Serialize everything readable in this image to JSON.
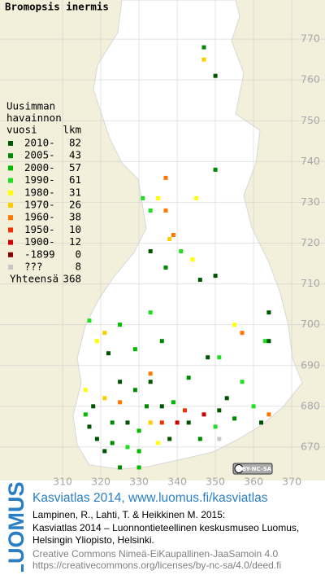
{
  "title": "Bromopsis inermis",
  "legend": {
    "heading": [
      "Uusimman",
      "havainnon",
      "vuosi"
    ],
    "count_heading": "lkm",
    "rows": [
      {
        "label": "2010-",
        "count": 82,
        "color": "#005500"
      },
      {
        "label": "2005-",
        "count": 43,
        "color": "#008800"
      },
      {
        "label": "2000-",
        "count": 57,
        "color": "#00bb00"
      },
      {
        "label": "1990-",
        "count": 61,
        "color": "#22dd22"
      },
      {
        "label": "1980-",
        "count": 31,
        "color": "#ffff00"
      },
      {
        "label": "1970-",
        "count": 26,
        "color": "#ffcc00"
      },
      {
        "label": "1960-",
        "count": 38,
        "color": "#ff7700"
      },
      {
        "label": "1950-",
        "count": 10,
        "color": "#ee3300"
      },
      {
        "label": "1900-",
        "count": 12,
        "color": "#cc0000"
      },
      {
        "label": "-1899",
        "count": 0,
        "color": "#880000"
      },
      {
        "label": "???",
        "count": 8,
        "color": "#c8c8c8"
      }
    ],
    "total_label": "Yhteensä",
    "total": 368
  },
  "axes": {
    "x": {
      "lim": [
        293.6,
        378.7
      ],
      "ticks": [
        310,
        320,
        330,
        340,
        350,
        360,
        370
      ]
    },
    "y": {
      "lim": [
        661.8,
        779.6
      ],
      "ticks": [
        670,
        680,
        690,
        700,
        710,
        720,
        730,
        740,
        750,
        760,
        770
      ]
    }
  },
  "squares": [
    [
      350,
      761,
      0
    ],
    [
      347,
      765,
      5
    ],
    [
      347,
      768,
      1
    ],
    [
      335,
      731,
      4
    ],
    [
      345,
      731,
      4
    ],
    [
      331,
      731,
      3
    ],
    [
      337,
      728,
      6
    ],
    [
      333,
      728,
      3
    ],
    [
      338,
      721,
      5
    ],
    [
      339,
      722,
      6
    ],
    [
      333,
      718,
      0
    ],
    [
      344,
      716,
      4
    ],
    [
      341,
      718,
      3
    ],
    [
      337,
      736,
      6
    ],
    [
      350,
      738,
      1
    ],
    [
      337,
      714,
      1
    ],
    [
      346,
      711,
      0
    ],
    [
      350,
      712,
      0
    ],
    [
      333,
      703,
      3
    ],
    [
      364,
      703,
      0
    ],
    [
      355,
      700,
      4
    ],
    [
      357,
      698,
      6
    ],
    [
      363,
      696,
      3
    ],
    [
      319,
      696,
      4
    ],
    [
      321,
      698,
      5
    ],
    [
      325,
      700,
      2
    ],
    [
      317,
      701,
      3
    ],
    [
      322,
      693,
      0
    ],
    [
      329,
      694,
      2
    ],
    [
      336,
      696,
      1
    ],
    [
      348,
      692,
      0
    ],
    [
      351,
      692,
      3
    ],
    [
      364,
      696,
      0
    ],
    [
      333,
      688,
      6
    ],
    [
      333,
      686,
      0
    ],
    [
      343,
      687,
      1
    ],
    [
      316,
      684,
      4
    ],
    [
      321,
      682,
      5
    ],
    [
      318,
      680,
      0
    ],
    [
      325,
      681,
      6
    ],
    [
      332,
      680,
      1
    ],
    [
      336,
      680,
      0
    ],
    [
      339,
      681,
      2
    ],
    [
      342,
      679,
      7
    ],
    [
      347,
      678,
      8
    ],
    [
      351,
      679,
      0
    ],
    [
      355,
      677,
      1
    ],
    [
      360,
      680,
      3
    ],
    [
      364,
      678,
      6
    ],
    [
      362,
      676,
      0
    ],
    [
      323,
      676,
      1
    ],
    [
      327,
      676,
      0
    ],
    [
      330,
      674,
      2
    ],
    [
      333,
      676,
      5
    ],
    [
      336,
      676,
      7
    ],
    [
      340,
      676,
      8
    ],
    [
      343,
      676,
      0
    ],
    [
      350,
      675,
      3
    ],
    [
      319,
      672,
      0
    ],
    [
      323,
      671,
      1
    ],
    [
      327,
      670,
      3
    ],
    [
      330,
      669,
      2
    ],
    [
      335,
      671,
      4
    ],
    [
      338,
      672,
      0
    ],
    [
      346,
      672,
      1
    ],
    [
      351,
      672,
      10
    ],
    [
      325,
      665,
      1
    ],
    [
      330,
      665,
      2
    ],
    [
      321,
      669,
      0
    ],
    [
      317,
      675,
      0
    ],
    [
      316,
      678,
      2
    ],
    [
      353,
      682,
      0
    ],
    [
      357,
      686,
      3
    ],
    [
      325,
      686,
      0
    ],
    [
      329,
      684,
      1
    ]
  ],
  "license_badge": "BY-NC-SA",
  "footer": {
    "logo": "LUOMUS",
    "title": "Kasviatlas 2014, www.luomus.fi/kasviatlas",
    "citation": [
      "Lampinen, R., Lahti, T. & Heikkinen M. 2015:",
      "Kasviatlas 2014 – Luonnontieteellinen keskusmuseo Luomus,",
      "Helsingin Yliopisto, Helsinki."
    ],
    "license": [
      "Creative Commons Nimeä-EiKaupallinen-JaaSamoin 4.0",
      "https://creativecommons.org/licenses/by-nc-sa/4.0/deed.fi"
    ]
  }
}
